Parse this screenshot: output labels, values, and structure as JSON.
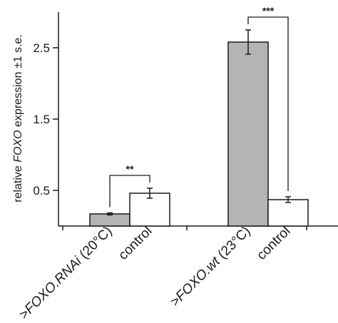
{
  "chart_data": {
    "type": "bar",
    "ylabel_parts": [
      {
        "text": "relative ",
        "italic": false
      },
      {
        "text": "FOXO",
        "italic": true
      },
      {
        "text": " expression ±1 s.e.",
        "italic": false
      }
    ],
    "ylim": [
      0,
      3.0
    ],
    "yticks": [
      0.5,
      1.5,
      2.5
    ],
    "ytick_labels": [
      "0.5",
      "1.5",
      "2.5"
    ],
    "grid": false,
    "legend": "none",
    "colors": {
      "treatment": "#b4b4b4",
      "control": "#ffffff",
      "axis": "#1a1a1a"
    },
    "groups": [
      {
        "bars": [
          {
            "label_parts": [
              {
                "text": ">FOXO.RNAi",
                "italic": true
              },
              {
                "text": " (20°C)",
                "italic": false
              }
            ],
            "value": 0.17,
            "error": 0.015,
            "fill": "treatment"
          },
          {
            "label_parts": [
              {
                "text": "control",
                "italic": false
              }
            ],
            "value": 0.46,
            "error": 0.07,
            "fill": "control"
          }
        ],
        "significance": "**"
      },
      {
        "bars": [
          {
            "label_parts": [
              {
                "text": ">FOXO.wt",
                "italic": true
              },
              {
                "text": " (23°C)",
                "italic": false
              }
            ],
            "value": 2.58,
            "error": 0.17,
            "fill": "treatment"
          },
          {
            "label_parts": [
              {
                "text": "control",
                "italic": false
              }
            ],
            "value": 0.37,
            "error": 0.04,
            "fill": "control"
          }
        ],
        "significance": "***"
      }
    ]
  }
}
